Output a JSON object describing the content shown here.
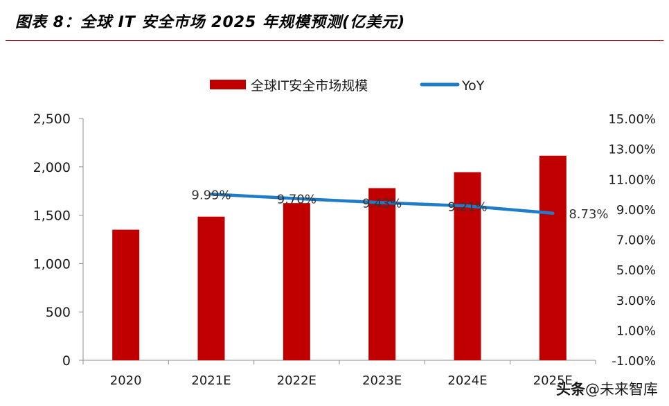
{
  "page_title": "图表 8：全球 IT 安全市场 2025 年规模预测(亿美元)",
  "watermark": {
    "source": "头条",
    "account": "@未来智库"
  },
  "colors": {
    "bar": "#c00000",
    "line": "#1f7cc6",
    "title_rule": "#b8121b",
    "text": "#1a1a1a"
  },
  "chart_data": {
    "type": "bar",
    "title": "图表 8：全球 IT 安全市场 2025 年规模预测(亿美元)",
    "categories": [
      "2020",
      "2021E",
      "2022E",
      "2023E",
      "2024E",
      "2025E"
    ],
    "series": [
      {
        "name": "全球IT安全市场规模",
        "type": "bar",
        "axis": "left",
        "values": [
          1350,
          1485,
          1625,
          1780,
          1945,
          2115
        ]
      },
      {
        "name": "YoY",
        "type": "line",
        "axis": "right",
        "values": [
          null,
          9.99,
          9.7,
          9.43,
          9.21,
          8.73
        ],
        "labels": [
          "",
          "9.99%",
          "9.70%",
          "9.43%",
          "9.21%",
          "8.73%"
        ]
      }
    ],
    "y_left": {
      "min": 0,
      "max": 2500,
      "ticks": [
        "0",
        "500",
        "1,000",
        "1,500",
        "2,000",
        "2,500"
      ]
    },
    "y_right": {
      "min": -1,
      "max": 15,
      "ticks": [
        "-1.00%",
        "1.00%",
        "3.00%",
        "5.00%",
        "7.00%",
        "9.00%",
        "11.00%",
        "13.00%",
        "15.00%"
      ]
    },
    "legend": "top-center",
    "grid": false
  }
}
